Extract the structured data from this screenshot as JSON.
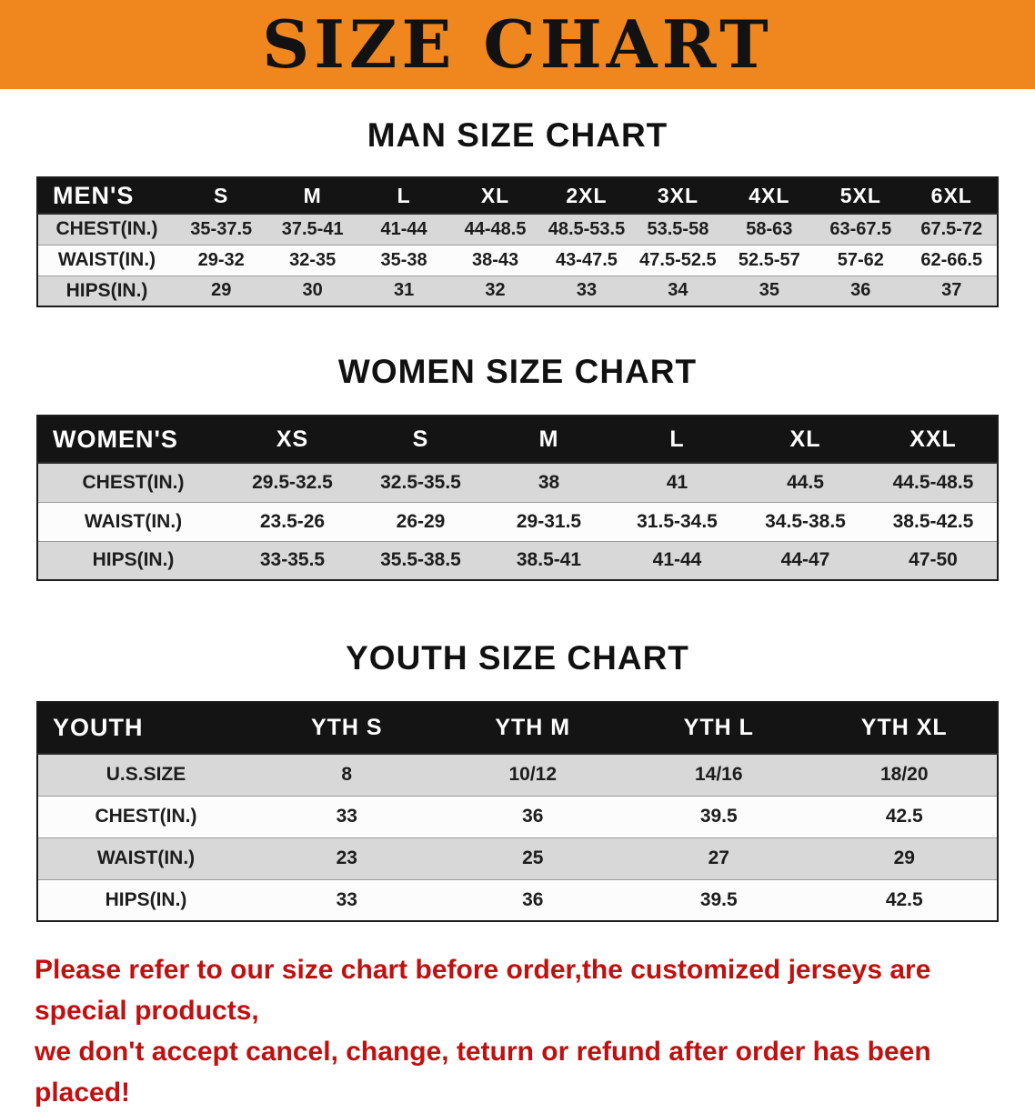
{
  "banner": {
    "title": "SIZE CHART",
    "bg_color": "#F0871E"
  },
  "sections": [
    {
      "id": "men",
      "title": "MAN SIZE CHART",
      "corner_label": "MEN'S",
      "columns": [
        "S",
        "M",
        "L",
        "XL",
        "2XL",
        "3XL",
        "4XL",
        "5XL",
        "6XL"
      ],
      "rows": [
        {
          "label": "CHEST(IN.)",
          "values": [
            "35-37.5",
            "37.5-41",
            "41-44",
            "44-48.5",
            "48.5-53.5",
            "53.5-58",
            "58-63",
            "63-67.5",
            "67.5-72"
          ]
        },
        {
          "label": "WAIST(IN.)",
          "values": [
            "29-32",
            "32-35",
            "35-38",
            "38-43",
            "43-47.5",
            "47.5-52.5",
            "52.5-57",
            "57-62",
            "62-66.5"
          ]
        },
        {
          "label": "HIPS(IN.)",
          "values": [
            "29",
            "30",
            "31",
            "32",
            "33",
            "34",
            "35",
            "36",
            "37"
          ]
        }
      ]
    },
    {
      "id": "women",
      "title": "WOMEN SIZE CHART",
      "corner_label": "WOMEN'S",
      "columns": [
        "XS",
        "S",
        "M",
        "L",
        "XL",
        "XXL"
      ],
      "rows": [
        {
          "label": "CHEST(IN.)",
          "values": [
            "29.5-32.5",
            "32.5-35.5",
            "38",
            "41",
            "44.5",
            "44.5-48.5"
          ]
        },
        {
          "label": "WAIST(IN.)",
          "values": [
            "23.5-26",
            "26-29",
            "29-31.5",
            "31.5-34.5",
            "34.5-38.5",
            "38.5-42.5"
          ]
        },
        {
          "label": "HIPS(IN.)",
          "values": [
            "33-35.5",
            "35.5-38.5",
            "38.5-41",
            "41-44",
            "44-47",
            "47-50"
          ]
        }
      ]
    },
    {
      "id": "youth",
      "title": "YOUTH SIZE CHART",
      "corner_label": "YOUTH",
      "columns": [
        "YTH S",
        "YTH M",
        "YTH L",
        "YTH XL"
      ],
      "rows": [
        {
          "label": "U.S.SIZE",
          "values": [
            "8",
            "10/12",
            "14/16",
            "18/20"
          ]
        },
        {
          "label": "CHEST(IN.)",
          "values": [
            "33",
            "36",
            "39.5",
            "42.5"
          ]
        },
        {
          "label": "WAIST(IN.)",
          "values": [
            "23",
            "25",
            "27",
            "29"
          ]
        },
        {
          "label": "HIPS(IN.)",
          "values": [
            "33",
            "36",
            "39.5",
            "42.5"
          ]
        }
      ]
    }
  ],
  "disclaimer": {
    "color": "#C01010",
    "lines": [
      "Please refer to our size chart before order,the customized jerseys are special products,",
      "we don't accept cancel, change, teturn or refund after order has been placed!"
    ]
  }
}
